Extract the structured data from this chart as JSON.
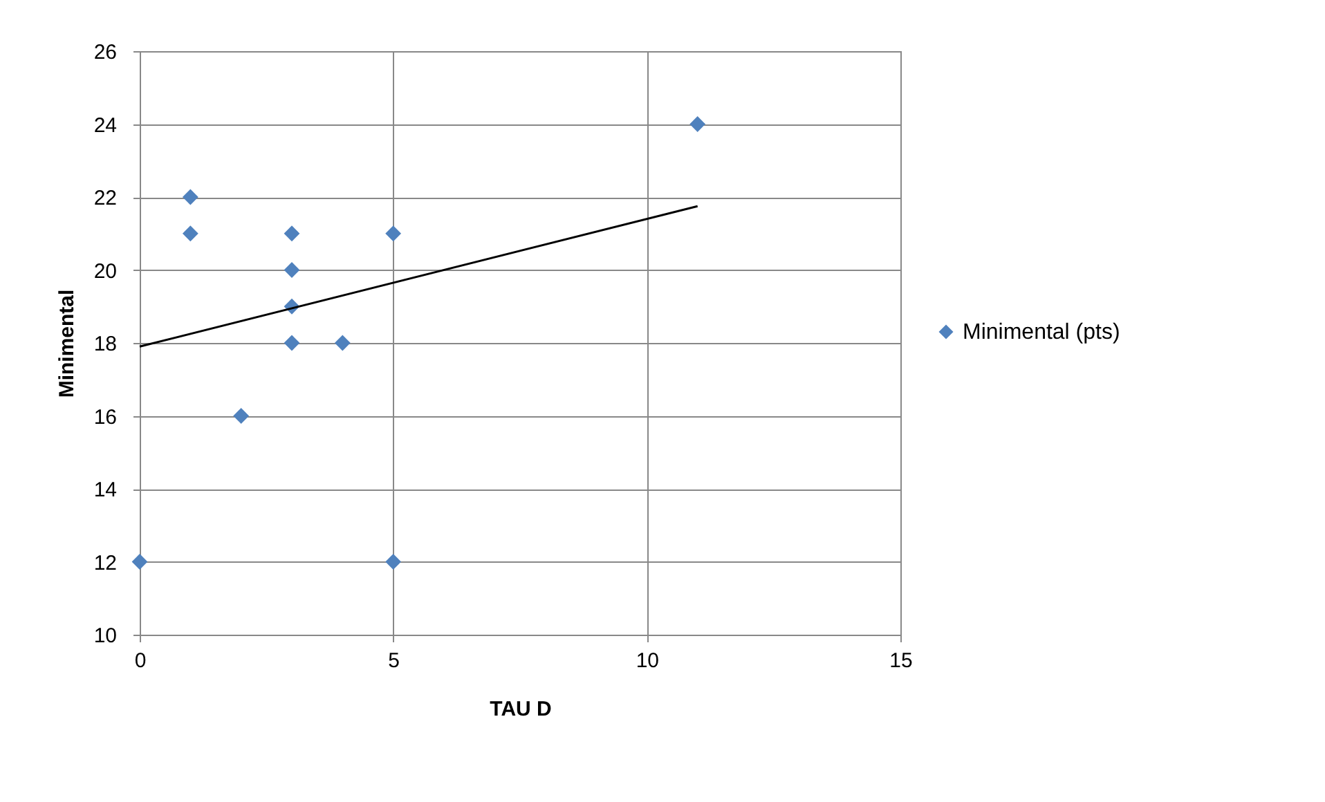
{
  "chart_data": {
    "type": "scatter",
    "xlabel": "TAU D",
    "ylabel": "Minimental",
    "xlim": [
      0,
      15
    ],
    "xticks": [
      0,
      5,
      10,
      15
    ],
    "ylim": [
      10,
      26
    ],
    "yticks": [
      10,
      12,
      14,
      16,
      18,
      20,
      22,
      24,
      26
    ],
    "grid": true,
    "legend": "right",
    "marker": "diamond",
    "series": [
      {
        "name": "Minimental (pts)",
        "color": "#4f81bd",
        "type": "scatter",
        "x": [
          0,
          1,
          1,
          2,
          3,
          3,
          3,
          3,
          4,
          5,
          5,
          11
        ],
        "values": [
          12,
          22,
          21,
          16,
          21,
          20,
          19,
          18,
          18,
          21,
          12,
          24
        ]
      },
      {
        "type": "line",
        "color": "#000000",
        "x": [
          0,
          11
        ],
        "values": [
          17.9,
          21.75
        ],
        "marker": "none"
      }
    ]
  }
}
